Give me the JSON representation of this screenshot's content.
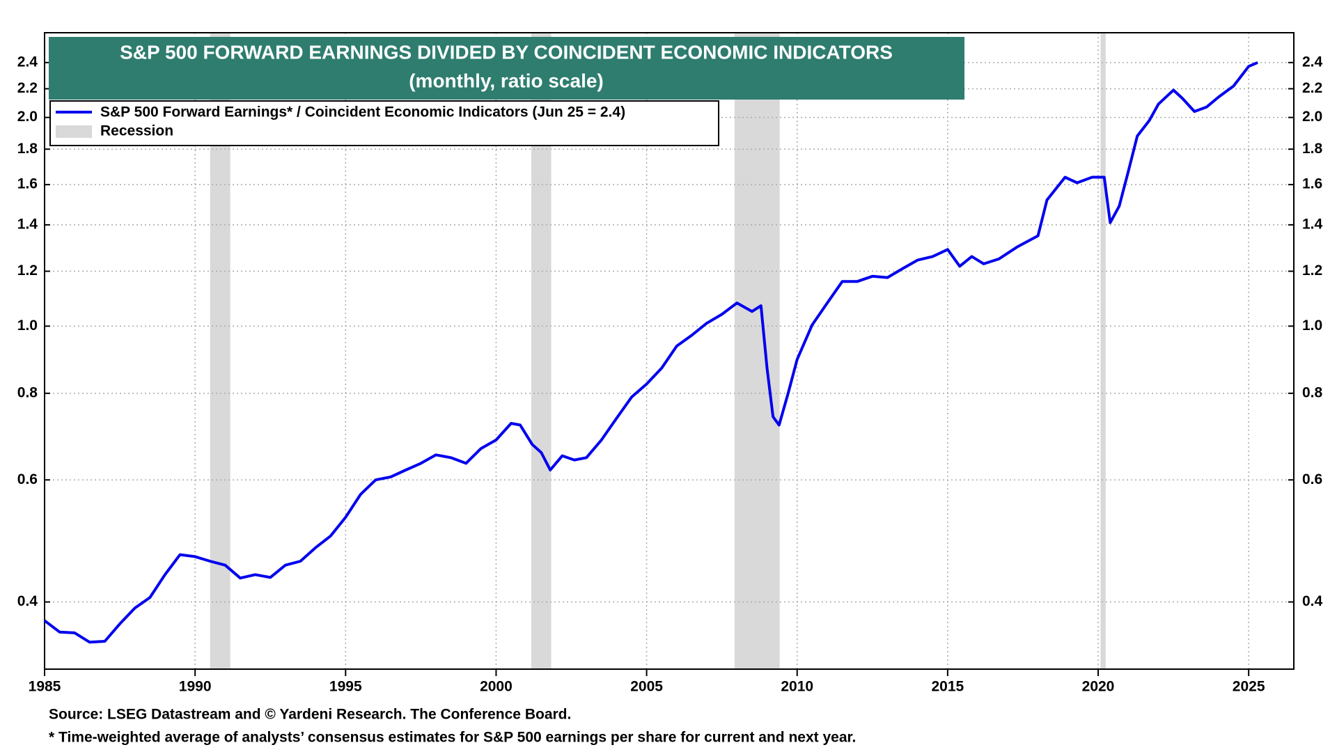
{
  "chart_data": {
    "type": "line",
    "title": "S&P 500 FORWARD EARNINGS DIVIDED BY COINCIDENT ECONOMIC INDICATORS",
    "subtitle": "(monthly, ratio scale)",
    "log_scale": true,
    "grid": true,
    "xlim": [
      1985,
      2026.5
    ],
    "xticks": [
      1985,
      1990,
      1995,
      2000,
      2005,
      2010,
      2015,
      2020,
      2025
    ],
    "ylim": [
      0.32,
      2.65
    ],
    "yticks": [
      0.4,
      0.6,
      0.8,
      {
        "value": 1,
        "label": "1.0"
      },
      1.2,
      1.4,
      1.6,
      1.8,
      {
        "value": 2,
        "label": "2.0"
      },
      2.2,
      2.4
    ],
    "x": [
      1985.0,
      1985.5,
      1986.0,
      1986.5,
      1987.0,
      1987.5,
      1988.0,
      1988.5,
      1989.0,
      1989.5,
      1990.0,
      1990.5,
      1991.0,
      1991.5,
      1992.0,
      1992.5,
      1993.0,
      1993.5,
      1994.0,
      1994.5,
      1995.0,
      1995.5,
      1996.0,
      1996.5,
      1997.0,
      1997.5,
      1998.0,
      1998.5,
      1999.0,
      1999.5,
      2000.0,
      2000.5,
      2000.8,
      2001.2,
      2001.5,
      2001.8,
      2002.2,
      2002.6,
      2003.0,
      2003.5,
      2004.0,
      2004.5,
      2005.0,
      2005.5,
      2006.0,
      2006.5,
      2007.0,
      2007.5,
      2008.0,
      2008.5,
      2008.8,
      2009.0,
      2009.2,
      2009.4,
      2009.7,
      2010.0,
      2010.5,
      2011.0,
      2011.5,
      2012.0,
      2012.5,
      2013.0,
      2013.5,
      2014.0,
      2014.5,
      2015.0,
      2015.4,
      2015.8,
      2016.2,
      2016.7,
      2017.3,
      2018.0,
      2018.3,
      2018.9,
      2019.3,
      2019.8,
      2020.2,
      2020.4,
      2020.7,
      2021.0,
      2021.3,
      2021.7,
      2022.0,
      2022.5,
      2022.8,
      2023.2,
      2023.6,
      2024.0,
      2024.5,
      2025.0,
      2025.3
    ],
    "series": [
      {
        "name": "S&P 500 Forward Earnings* / Coincident Economic Indicators (Jun 25 = 2.4)",
        "color": "#0000ee",
        "values": [
          0.376,
          0.362,
          0.361,
          0.35,
          0.351,
          0.372,
          0.392,
          0.406,
          0.438,
          0.468,
          0.465,
          0.458,
          0.452,
          0.433,
          0.438,
          0.434,
          0.452,
          0.458,
          0.479,
          0.498,
          0.53,
          0.572,
          0.6,
          0.606,
          0.62,
          0.634,
          0.652,
          0.646,
          0.634,
          0.666,
          0.685,
          0.724,
          0.72,
          0.675,
          0.657,
          0.62,
          0.65,
          0.641,
          0.646,
          0.685,
          0.736,
          0.79,
          0.825,
          0.87,
          0.936,
          0.97,
          1.01,
          1.04,
          1.08,
          1.05,
          1.07,
          0.87,
          0.74,
          0.72,
          0.8,
          0.895,
          1.004,
          1.08,
          1.16,
          1.16,
          1.18,
          1.175,
          1.21,
          1.245,
          1.26,
          1.29,
          1.22,
          1.26,
          1.23,
          1.25,
          1.3,
          1.35,
          1.52,
          1.64,
          1.61,
          1.64,
          1.64,
          1.41,
          1.49,
          1.67,
          1.88,
          1.98,
          2.09,
          2.19,
          2.13,
          2.04,
          2.07,
          2.14,
          2.22,
          2.37,
          2.4
        ]
      }
    ],
    "recessions": {
      "name": "Recession",
      "color": "#d9d9d9",
      "periods": [
        [
          1990.5,
          1991.17
        ],
        [
          2001.17,
          2001.83
        ],
        [
          2007.92,
          2009.42
        ],
        [
          2020.08,
          2020.25
        ]
      ]
    },
    "notes": [
      "Source: LSEG Datastream and © Yardeni Research. The Conference Board.",
      "* Time-weighted average of analysts’ consensus estimates for S&P 500 earnings per share for current and next year."
    ]
  }
}
